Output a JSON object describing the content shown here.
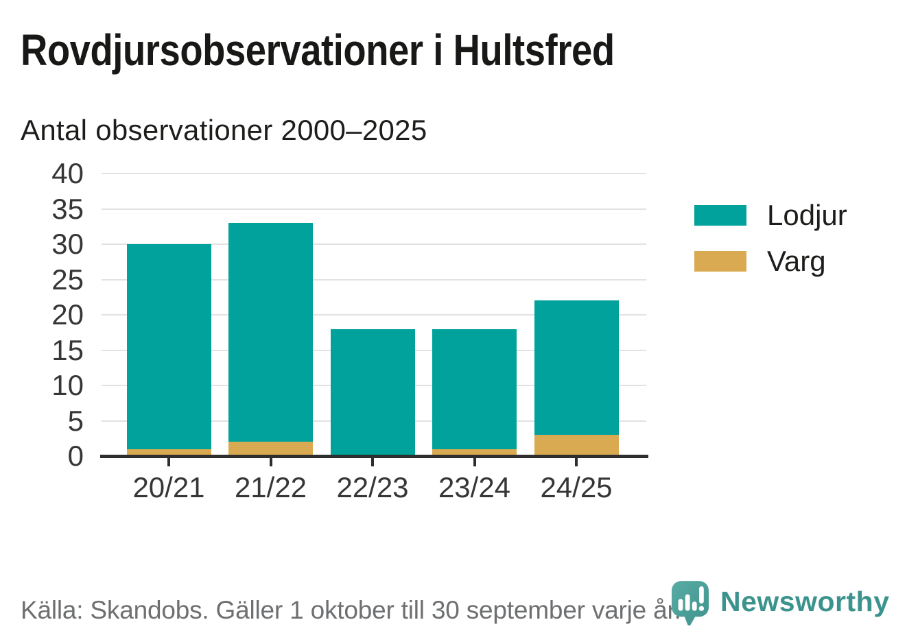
{
  "header": {
    "title": "Rovdjursobservationer i Hultsfred",
    "subtitle": "Antal observationer 2000–2025"
  },
  "chart_data": {
    "type": "bar",
    "stacked": true,
    "title": "Rovdjursobservationer i Hultsfred",
    "subtitle": "Antal observationer 2000–2025",
    "categories": [
      "20/21",
      "21/22",
      "22/23",
      "23/24",
      "24/25"
    ],
    "series": [
      {
        "name": "Varg",
        "color": "#d9aa52",
        "values": [
          1,
          2,
          0,
          1,
          3
        ]
      },
      {
        "name": "Lodjur",
        "color": "#00a29b",
        "values": [
          29,
          31,
          18,
          17,
          19
        ]
      }
    ],
    "totals": [
      30,
      33,
      18,
      18,
      22
    ],
    "xlabel": "",
    "ylabel": "",
    "ylim": [
      0,
      40
    ],
    "ytick_step": 5,
    "yticks": [
      0,
      5,
      10,
      15,
      20,
      25,
      30,
      35,
      40
    ],
    "grid": true,
    "legend_position": "right"
  },
  "legend": {
    "items": [
      {
        "label": "Lodjur",
        "color": "#00a29b"
      },
      {
        "label": "Varg",
        "color": "#d9aa52"
      }
    ]
  },
  "footer": {
    "source": "Källa: Skandobs. Gäller 1 oktober till 30 september varje år.",
    "brand": "Newsworthy"
  },
  "colors": {
    "lodjur": "#00a29b",
    "varg": "#d9aa52",
    "axis": "#2e2e2e",
    "grid": "#e2e2e2",
    "title_text": "#181817",
    "axis_text": "#363636",
    "source_text": "#6d6f71",
    "brand_teal": "#3c938d"
  }
}
